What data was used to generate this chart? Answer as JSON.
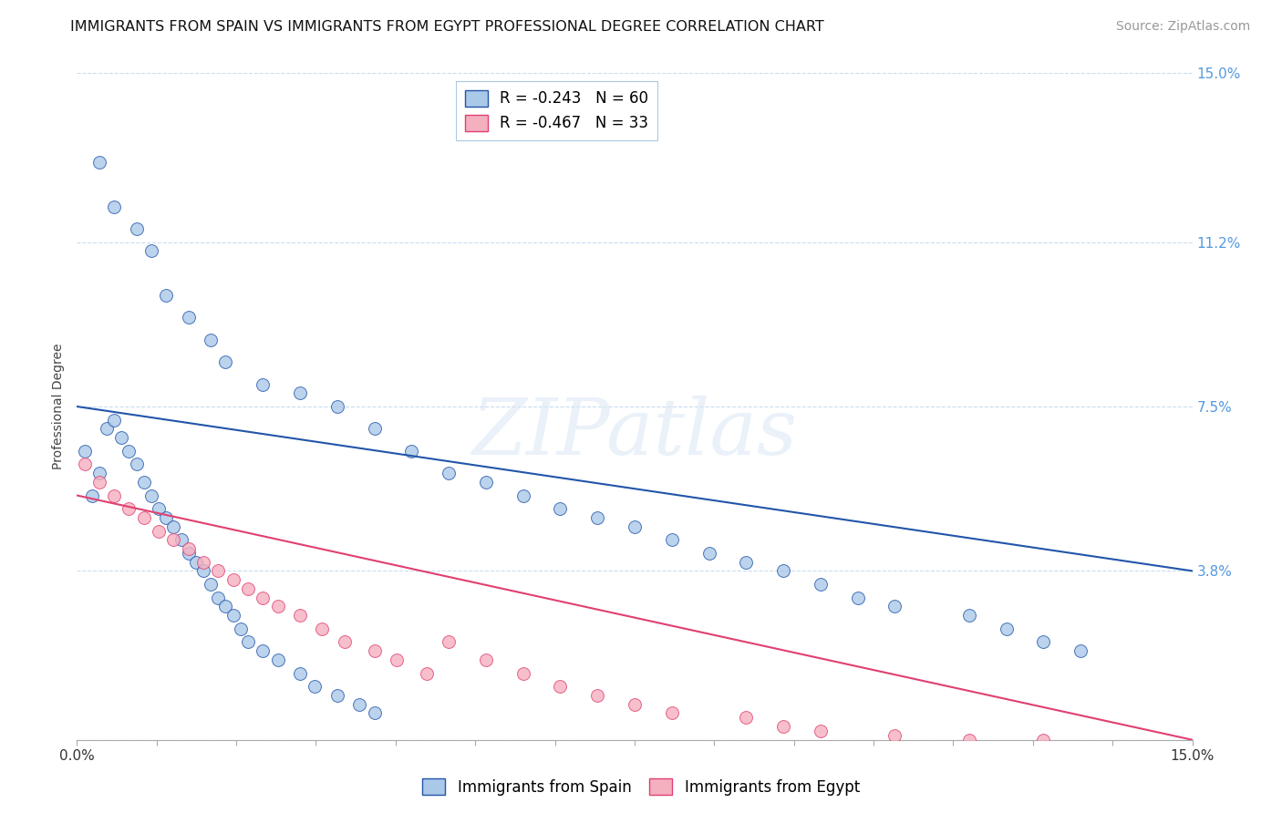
{
  "title": "IMMIGRANTS FROM SPAIN VS IMMIGRANTS FROM EGYPT PROFESSIONAL DEGREE CORRELATION CHART",
  "source": "Source: ZipAtlas.com",
  "ylabel": "Professional Degree",
  "xmin": 0.0,
  "xmax": 0.15,
  "ymin": 0.0,
  "ymax": 0.15,
  "spain_R": -0.243,
  "spain_N": 60,
  "egypt_R": -0.467,
  "egypt_N": 33,
  "spain_color": "#aac8e8",
  "egypt_color": "#f5b0c0",
  "spain_line_color": "#2255aa",
  "egypt_line_color": "#e04070",
  "watermark_text": "ZIPatlas",
  "spain_x": [
    0.001,
    0.002,
    0.003,
    0.004,
    0.005,
    0.006,
    0.007,
    0.008,
    0.009,
    0.01,
    0.011,
    0.012,
    0.013,
    0.014,
    0.015,
    0.016,
    0.017,
    0.018,
    0.019,
    0.02,
    0.021,
    0.022,
    0.023,
    0.025,
    0.027,
    0.03,
    0.032,
    0.035,
    0.038,
    0.04,
    0.003,
    0.005,
    0.008,
    0.01,
    0.012,
    0.015,
    0.018,
    0.02,
    0.025,
    0.03,
    0.035,
    0.04,
    0.045,
    0.05,
    0.055,
    0.06,
    0.065,
    0.07,
    0.075,
    0.08,
    0.085,
    0.09,
    0.095,
    0.1,
    0.105,
    0.11,
    0.12,
    0.125,
    0.13,
    0.135
  ],
  "spain_y": [
    0.065,
    0.055,
    0.06,
    0.07,
    0.072,
    0.068,
    0.065,
    0.062,
    0.058,
    0.055,
    0.052,
    0.05,
    0.048,
    0.045,
    0.042,
    0.04,
    0.038,
    0.035,
    0.032,
    0.03,
    0.028,
    0.025,
    0.022,
    0.02,
    0.018,
    0.015,
    0.012,
    0.01,
    0.008,
    0.006,
    0.13,
    0.12,
    0.115,
    0.11,
    0.1,
    0.095,
    0.09,
    0.085,
    0.08,
    0.078,
    0.075,
    0.07,
    0.065,
    0.06,
    0.058,
    0.055,
    0.052,
    0.05,
    0.048,
    0.045,
    0.042,
    0.04,
    0.038,
    0.035,
    0.032,
    0.03,
    0.028,
    0.025,
    0.022,
    0.02
  ],
  "egypt_x": [
    0.001,
    0.003,
    0.005,
    0.007,
    0.009,
    0.011,
    0.013,
    0.015,
    0.017,
    0.019,
    0.021,
    0.023,
    0.025,
    0.027,
    0.03,
    0.033,
    0.036,
    0.04,
    0.043,
    0.047,
    0.05,
    0.055,
    0.06,
    0.065,
    0.07,
    0.075,
    0.08,
    0.09,
    0.095,
    0.1,
    0.11,
    0.12,
    0.13
  ],
  "egypt_y": [
    0.062,
    0.058,
    0.055,
    0.052,
    0.05,
    0.047,
    0.045,
    0.043,
    0.04,
    0.038,
    0.036,
    0.034,
    0.032,
    0.03,
    0.028,
    0.025,
    0.022,
    0.02,
    0.018,
    0.015,
    0.022,
    0.018,
    0.015,
    0.012,
    0.01,
    0.008,
    0.006,
    0.005,
    0.003,
    0.002,
    0.001,
    0.0,
    0.0
  ],
  "spain_dot_size": 100,
  "egypt_dot_size": 100,
  "background_color": "#ffffff",
  "grid_color": "#c8ddf0",
  "title_fontsize": 11.5,
  "tick_fontsize": 11,
  "legend_fontsize": 12,
  "source_fontsize": 10
}
